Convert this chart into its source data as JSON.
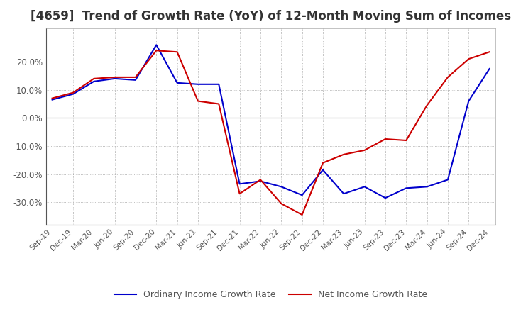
{
  "title": "[4659]  Trend of Growth Rate (YoY) of 12-Month Moving Sum of Incomes",
  "title_fontsize": 12,
  "background_color": "#ffffff",
  "grid_color": "#aaaaaa",
  "x_labels": [
    "Sep-19",
    "Dec-19",
    "Mar-20",
    "Jun-20",
    "Sep-20",
    "Dec-20",
    "Mar-21",
    "Jun-21",
    "Sep-21",
    "Dec-21",
    "Mar-22",
    "Jun-22",
    "Sep-22",
    "Dec-22",
    "Mar-23",
    "Jun-23",
    "Sep-23",
    "Dec-23",
    "Mar-24",
    "Jun-24",
    "Sep-24",
    "Dec-24"
  ],
  "ordinary_income": [
    6.5,
    8.5,
    13.0,
    14.0,
    13.5,
    26.0,
    12.5,
    12.0,
    12.0,
    -23.5,
    -22.5,
    -24.5,
    -27.5,
    -18.5,
    -27.0,
    -24.5,
    -28.5,
    -25.0,
    -24.5,
    -22.0,
    6.0,
    17.5
  ],
  "net_income": [
    7.0,
    9.0,
    14.0,
    14.5,
    14.5,
    24.0,
    23.5,
    6.0,
    5.0,
    -27.0,
    -22.0,
    -30.5,
    -34.5,
    -16.0,
    -13.0,
    -11.5,
    -7.5,
    -8.0,
    4.5,
    14.5,
    21.0,
    23.5
  ],
  "ordinary_color": "#0000cc",
  "net_color": "#cc0000",
  "ylim": [
    -38,
    32
  ],
  "yticks": [
    -30.0,
    -20.0,
    -10.0,
    0.0,
    10.0,
    20.0
  ],
  "legend_ordinary": "Ordinary Income Growth Rate",
  "legend_net": "Net Income Growth Rate"
}
